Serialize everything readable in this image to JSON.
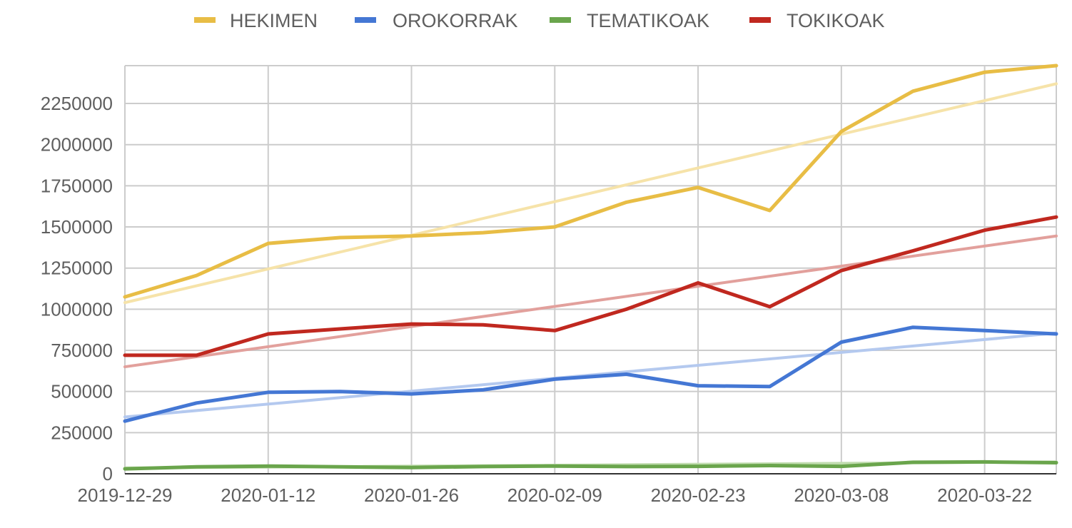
{
  "chart_data": {
    "type": "line",
    "legend_position": "top",
    "grid": true,
    "x": [
      "2019-12-29",
      "2020-01-05",
      "2020-01-12",
      "2020-01-19",
      "2020-01-26",
      "2020-02-02",
      "2020-02-09",
      "2020-02-16",
      "2020-02-23",
      "2020-03-01",
      "2020-03-08",
      "2020-03-15",
      "2020-03-22",
      "2020-03-29"
    ],
    "x_ticks": [
      "2019-12-29",
      "2020-01-12",
      "2020-01-26",
      "2020-02-09",
      "2020-02-23",
      "2020-03-08",
      "2020-03-22"
    ],
    "y_ticks": [
      "0",
      "250000",
      "500000",
      "750000",
      "1000000",
      "1250000",
      "1500000",
      "1750000",
      "2000000",
      "2250000"
    ],
    "ylim": [
      0,
      2480000
    ],
    "trendlines": true,
    "series": [
      {
        "name": "HEKIMEN",
        "color": "#e8bd45",
        "trend_color": "#f6e3a9",
        "values": [
          1075000,
          1205000,
          1400000,
          1435000,
          1445000,
          1465000,
          1500000,
          1650000,
          1740000,
          1600000,
          2080000,
          2325000,
          2440000,
          2480000
        ],
        "trend": [
          1040000,
          2370000
        ]
      },
      {
        "name": "OROKORRAK",
        "color": "#4477d4",
        "trend_color": "#b4c9ef",
        "values": [
          320000,
          430000,
          495000,
          500000,
          485000,
          510000,
          575000,
          605000,
          535000,
          530000,
          800000,
          890000,
          870000,
          850000
        ],
        "trend": [
          345000,
          855000
        ]
      },
      {
        "name": "TEMATIKOAK",
        "color": "#6aa54c",
        "trend_color": "#c0dcae",
        "values": [
          30000,
          42000,
          47000,
          42000,
          38000,
          44000,
          47000,
          44000,
          45000,
          50000,
          45000,
          70000,
          72000,
          67000
        ],
        "trend": [
          35000,
          72000
        ]
      },
      {
        "name": "TOKIKOAK",
        "color": "#c0281f",
        "trend_color": "#e2a09c",
        "values": [
          720000,
          720000,
          850000,
          880000,
          910000,
          905000,
          870000,
          1000000,
          1160000,
          1015000,
          1235000,
          1355000,
          1480000,
          1560000
        ],
        "trend": [
          650000,
          1445000
        ]
      }
    ]
  }
}
